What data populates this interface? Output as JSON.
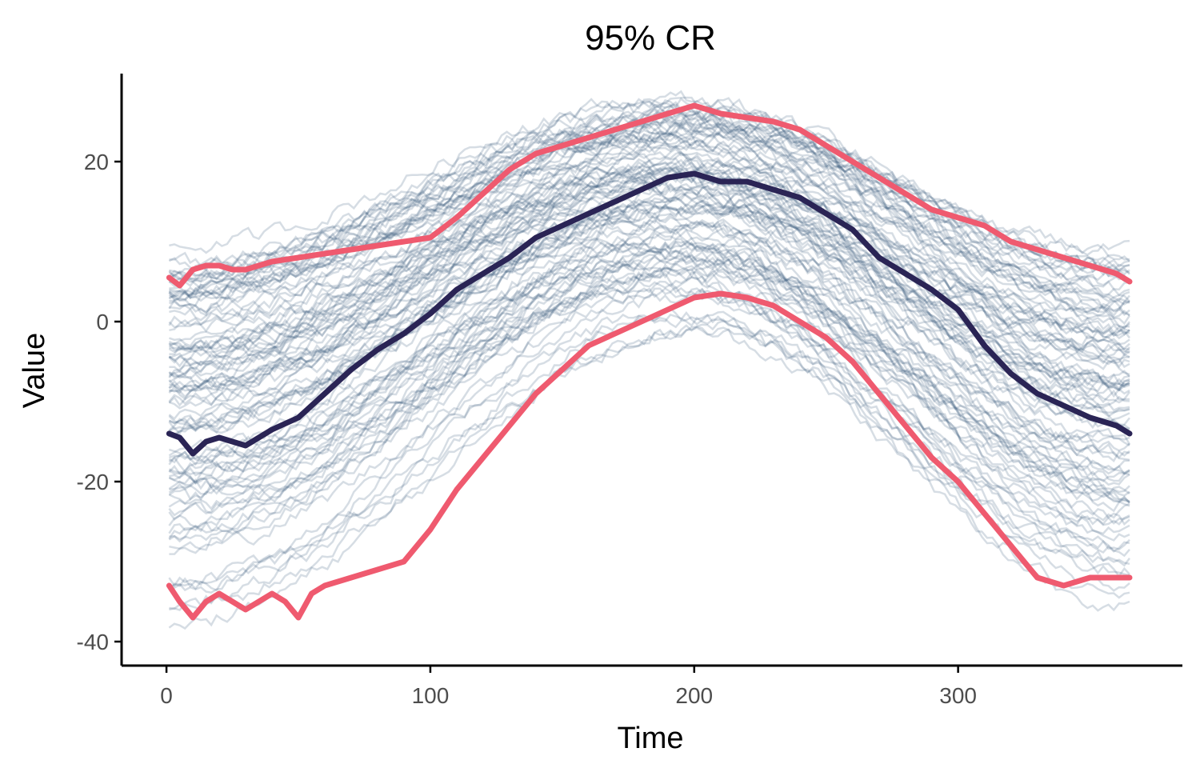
{
  "chart_data": {
    "type": "line",
    "title": "95% CR",
    "xlabel": "Time",
    "ylabel": "Value",
    "xlim": [
      -17,
      385
    ],
    "ylim": [
      -43,
      31
    ],
    "x_ticks": [
      0,
      100,
      200,
      300
    ],
    "y_ticks": [
      -40,
      -20,
      0,
      20
    ],
    "x_tick_labels": [
      "0",
      "100",
      "200",
      "300"
    ],
    "y_tick_labels": [
      "-40",
      "-20",
      "0",
      "20"
    ],
    "grid": false,
    "legend": "none",
    "ensemble": {
      "count": 100,
      "color": "#34567a",
      "time_range": [
        1,
        365
      ],
      "offset_range_start": [
        -36,
        8
      ],
      "offset_range_peak": [
        -1,
        27
      ],
      "offset_range_end": [
        -35,
        8
      ]
    },
    "series": [
      {
        "role": "upper",
        "color": "#ef5a6f",
        "x": [
          1,
          5,
          10,
          15,
          20,
          25,
          30,
          40,
          50,
          60,
          70,
          80,
          90,
          100,
          110,
          120,
          130,
          140,
          150,
          160,
          170,
          180,
          190,
          200,
          210,
          220,
          230,
          240,
          250,
          260,
          270,
          280,
          290,
          300,
          310,
          320,
          330,
          340,
          350,
          360,
          365
        ],
        "y": [
          5.5,
          4.5,
          6.5,
          7,
          7,
          6.5,
          6.5,
          7.5,
          8,
          8.5,
          9,
          9.5,
          10,
          10.5,
          13,
          16,
          19,
          21,
          22,
          23,
          24,
          25,
          26,
          27,
          26,
          25.5,
          25,
          24,
          22,
          20,
          18,
          16,
          14,
          13,
          12,
          10,
          9,
          8,
          7,
          6,
          5
        ]
      },
      {
        "role": "median",
        "color": "#2a2455",
        "x": [
          1,
          5,
          10,
          15,
          20,
          25,
          30,
          35,
          40,
          50,
          60,
          70,
          80,
          90,
          100,
          110,
          120,
          130,
          140,
          150,
          160,
          170,
          180,
          190,
          200,
          210,
          220,
          230,
          240,
          250,
          260,
          270,
          280,
          290,
          300,
          310,
          320,
          330,
          340,
          350,
          360,
          365
        ],
        "y": [
          -14,
          -14.5,
          -16.5,
          -15,
          -14.5,
          -15,
          -15.5,
          -14.5,
          -13.5,
          -12,
          -9,
          -6,
          -3.5,
          -1.5,
          1,
          4,
          6,
          8,
          10.5,
          12,
          13.5,
          15,
          16.5,
          18,
          18.5,
          17.5,
          17.5,
          16.5,
          15.5,
          13.5,
          11.5,
          8,
          6,
          4,
          1.5,
          -3,
          -6.5,
          -9,
          -10.5,
          -12,
          -13,
          -14
        ]
      },
      {
        "role": "lower",
        "color": "#ef5a6f",
        "x": [
          1,
          5,
          10,
          15,
          20,
          25,
          30,
          35,
          40,
          45,
          50,
          55,
          60,
          70,
          80,
          90,
          100,
          110,
          120,
          130,
          140,
          150,
          160,
          170,
          180,
          190,
          200,
          210,
          220,
          230,
          240,
          250,
          260,
          270,
          280,
          290,
          300,
          310,
          320,
          330,
          340,
          350,
          360,
          365
        ],
        "y": [
          -33,
          -35,
          -37,
          -35,
          -34,
          -35,
          -36,
          -35,
          -34,
          -35,
          -37,
          -34,
          -33,
          -32,
          -31,
          -30,
          -26,
          -21,
          -17,
          -13,
          -9,
          -6,
          -3,
          -1.5,
          0,
          1.5,
          3,
          3.5,
          3,
          2,
          0,
          -2,
          -5,
          -9,
          -13,
          -17,
          -20,
          -24,
          -28,
          -32,
          -33,
          -32,
          -32,
          -32
        ]
      }
    ]
  }
}
